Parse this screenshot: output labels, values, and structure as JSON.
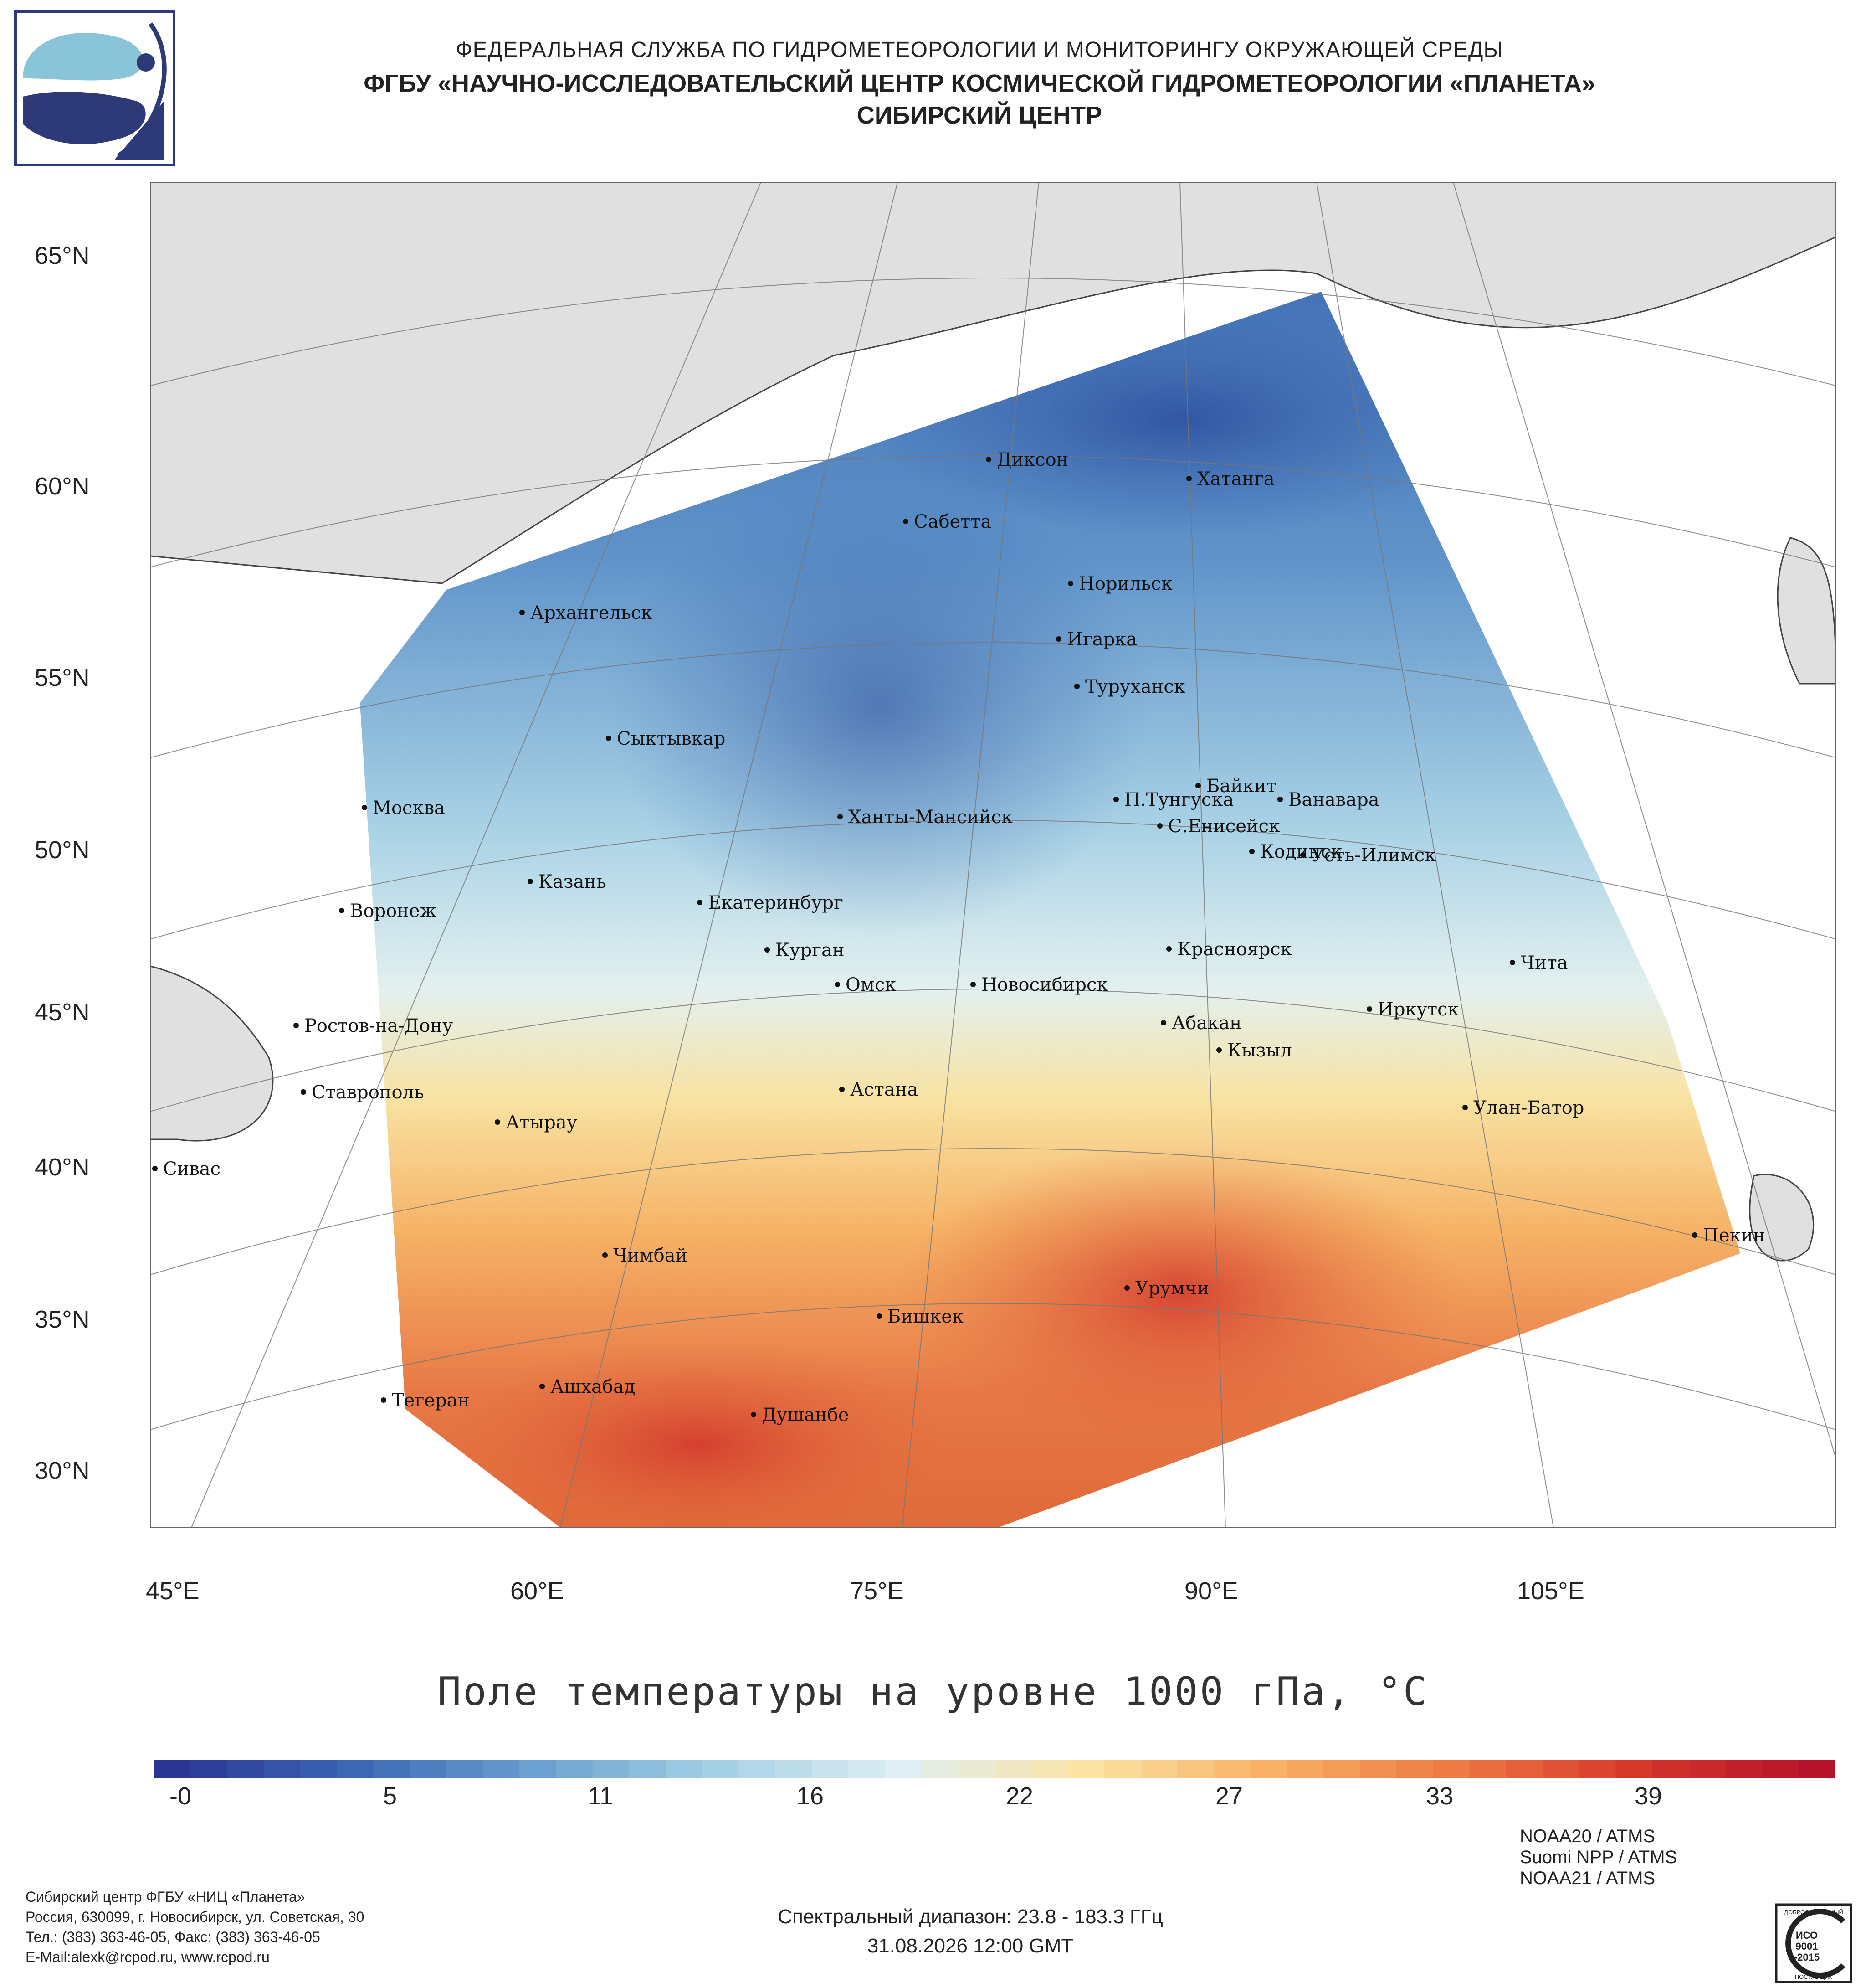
{
  "header": {
    "agency": "ФЕДЕРАЛЬНАЯ СЛУЖБА ПО ГИДРОМЕТЕОРОЛОГИИ И МОНИТОРИНГУ ОКРУЖАЮЩЕЙ СРЕДЫ",
    "institute": "ФГБУ «НАУЧНО-ИССЛЕДОВАТЕЛЬСКИЙ ЦЕНТР КОСМИЧЕСКОЙ ГИДРОМЕТЕОРОЛОГИИ «ПЛАНЕТА»",
    "center": "СИБИРСКИЙ ЦЕНТР"
  },
  "map": {
    "lat_labels": [
      "65°N",
      "60°N",
      "55°N",
      "50°N",
      "45°N",
      "40°N",
      "35°N",
      "30°N"
    ],
    "lon_labels": [
      "45°E",
      "60°E",
      "75°E",
      "90°E",
      "105°E"
    ],
    "cities": [
      "Диксон",
      "Хатанга",
      "Сабетта",
      "Норильск",
      "Архангельск",
      "Игарка",
      "Туруханск",
      "Сыктывкар",
      "Байкит",
      "П.Тунгуска",
      "Ванавара",
      "Москва",
      "Ханты-Мансийск",
      "С.Енисейск",
      "Кодинск",
      "Усть-Илимск",
      "Казань",
      "Екатеринбург",
      "Воронеж",
      "Красноярск",
      "Курган",
      "Чита",
      "Омск",
      "Новосибирск",
      "Ростов-на-Дону",
      "Абакан",
      "Иркутск",
      "Кызыл",
      "Ставрополь",
      "Астана",
      "Улан-Батор",
      "Атырау",
      "Сивас",
      "Пекин",
      "Чимбай",
      "Урумчи",
      "Бишкек",
      "Ашхабад",
      "Тегеран",
      "Душанбе"
    ],
    "title": "Поле температуры на уровне 1000 гПа, °C",
    "colors": {
      "cold": "#2b3f98",
      "mid_cold": "#5b8ec9",
      "light": "#dceef5",
      "neutral": "#f4f0d8",
      "warm": "#f6b766",
      "hot": "#e3623d",
      "max": "#b2182b",
      "land": "#e0e0e0",
      "ocean": "#ffffff"
    }
  },
  "colorbar": {
    "ticks": [
      "-0",
      "5",
      "11",
      "16",
      "22",
      "27",
      "33",
      "39"
    ],
    "stops": [
      "#2b3594",
      "#3c67b5",
      "#6aa1d0",
      "#a6d1e5",
      "#e0eff3",
      "#fbe4a4",
      "#f8b165",
      "#ee7a44",
      "#d7382c",
      "#b4122a"
    ]
  },
  "footer": {
    "org_lines": [
      "Сибирский центр ФГБУ «НИЦ «Планета»",
      "Россия, 630099, г. Новосибирск, ул. Советская, 30",
      "Тел.: (383) 363-46-05, Факс: (383) 363-46-05",
      "E-Mail:alexk@rcpod.ru, www.rcpod.ru"
    ],
    "spectral": "Спектральный диапазон: 23.8 - 183.3 ГГц",
    "datetime": "31.08.2026 12:00 GMT",
    "satellites": [
      "NOAA20 / ATMS",
      "Suomi NPP / ATMS",
      "NOAA21 / ATMS"
    ],
    "iso_top": "ДОБРОСОВЕСТНЫЙ",
    "iso_mid1": "ИСО",
    "iso_mid2": "9001",
    "iso_mid3": "-2015",
    "iso_bottom": "ПОСТАВЩИК"
  }
}
